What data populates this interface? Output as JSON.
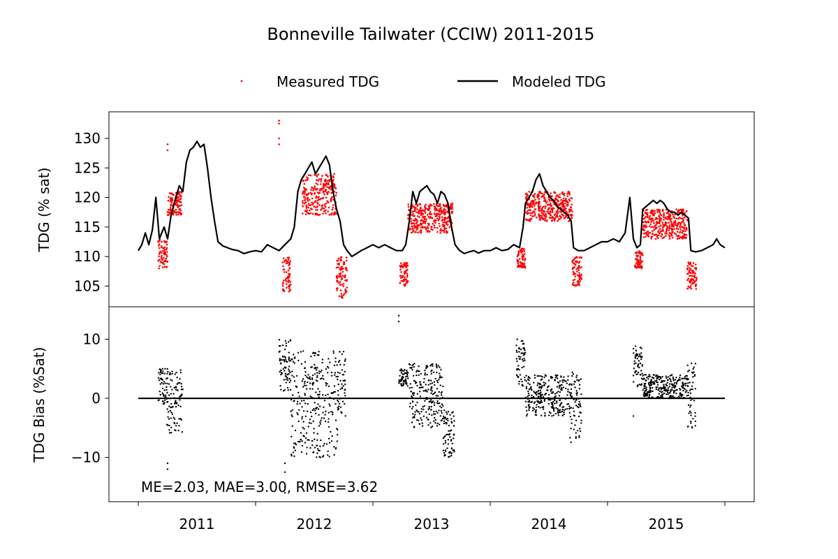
{
  "chart_data": {
    "type": "line",
    "title": "Bonneville Tailwater (CCIW) 2011-2015",
    "colors": {
      "measured": "#ff0000",
      "modeled": "#000000",
      "bias": "#000000",
      "axes": "#000000",
      "zero_line": "#000000"
    },
    "legend": {
      "placement": "top-center",
      "entries": [
        "Measured TDG",
        "Modeled TDG"
      ]
    },
    "x_axis": {
      "ticks": [
        "2011",
        "2012",
        "2013",
        "2014",
        "2015"
      ],
      "range": [
        2010.75,
        2016.25
      ]
    },
    "top_panel": {
      "ylabel": "TDG (% sat)",
      "ylim": [
        101.5,
        134.5
      ],
      "yticks": [
        "105",
        "110",
        "115",
        "120",
        "125",
        "130"
      ],
      "modeled": [
        [
          2011.0,
          111.0
        ],
        [
          2011.03,
          112.0
        ],
        [
          2011.06,
          114.0
        ],
        [
          2011.09,
          112.0
        ],
        [
          2011.12,
          114.5
        ],
        [
          2011.15,
          120.0
        ],
        [
          2011.18,
          113.0
        ],
        [
          2011.22,
          115.0
        ],
        [
          2011.25,
          113.0
        ],
        [
          2011.28,
          117.0
        ],
        [
          2011.32,
          120.0
        ],
        [
          2011.35,
          122.0
        ],
        [
          2011.38,
          121.0
        ],
        [
          2011.41,
          126.0
        ],
        [
          2011.44,
          128.0
        ],
        [
          2011.47,
          128.5
        ],
        [
          2011.5,
          129.5
        ],
        [
          2011.53,
          128.5
        ],
        [
          2011.56,
          129.0
        ],
        [
          2011.59,
          125.0
        ],
        [
          2011.62,
          120.0
        ],
        [
          2011.65,
          116.0
        ],
        [
          2011.68,
          112.5
        ],
        [
          2011.72,
          111.8
        ],
        [
          2011.76,
          111.5
        ],
        [
          2011.8,
          111.2
        ],
        [
          2011.85,
          111.0
        ],
        [
          2011.9,
          110.5
        ],
        [
          2011.95,
          110.8
        ],
        [
          2012.0,
          111.0
        ],
        [
          2012.05,
          110.8
        ],
        [
          2012.1,
          112.0
        ],
        [
          2012.15,
          111.5
        ],
        [
          2012.2,
          111.0
        ],
        [
          2012.25,
          112.0
        ],
        [
          2012.3,
          113.0
        ],
        [
          2012.33,
          115.0
        ],
        [
          2012.36,
          121.0
        ],
        [
          2012.39,
          123.0
        ],
        [
          2012.42,
          124.0
        ],
        [
          2012.45,
          125.0
        ],
        [
          2012.48,
          126.0
        ],
        [
          2012.51,
          124.0
        ],
        [
          2012.54,
          125.0
        ],
        [
          2012.57,
          126.0
        ],
        [
          2012.6,
          127.0
        ],
        [
          2012.63,
          125.5
        ],
        [
          2012.66,
          121.0
        ],
        [
          2012.69,
          118.0
        ],
        [
          2012.72,
          116.0
        ],
        [
          2012.75,
          112.0
        ],
        [
          2012.78,
          111.0
        ],
        [
          2012.82,
          110.0
        ],
        [
          2012.86,
          110.5
        ],
        [
          2012.9,
          111.0
        ],
        [
          2012.95,
          111.5
        ],
        [
          2013.0,
          112.0
        ],
        [
          2013.05,
          111.5
        ],
        [
          2013.1,
          112.0
        ],
        [
          2013.15,
          111.5
        ],
        [
          2013.2,
          111.0
        ],
        [
          2013.25,
          111.0
        ],
        [
          2013.28,
          112.0
        ],
        [
          2013.31,
          116.0
        ],
        [
          2013.34,
          121.0
        ],
        [
          2013.37,
          119.0
        ],
        [
          2013.4,
          121.0
        ],
        [
          2013.43,
          121.5
        ],
        [
          2013.46,
          122.0
        ],
        [
          2013.49,
          121.0
        ],
        [
          2013.52,
          120.5
        ],
        [
          2013.55,
          119.0
        ],
        [
          2013.58,
          121.0
        ],
        [
          2013.61,
          120.5
        ],
        [
          2013.64,
          119.0
        ],
        [
          2013.67,
          115.0
        ],
        [
          2013.7,
          112.0
        ],
        [
          2013.74,
          111.0
        ],
        [
          2013.78,
          110.5
        ],
        [
          2013.82,
          110.8
        ],
        [
          2013.86,
          111.0
        ],
        [
          2013.9,
          110.6
        ],
        [
          2013.95,
          111.0
        ],
        [
          2014.0,
          111.0
        ],
        [
          2014.05,
          111.5
        ],
        [
          2014.1,
          111.0
        ],
        [
          2014.15,
          111.2
        ],
        [
          2014.2,
          112.0
        ],
        [
          2014.25,
          111.5
        ],
        [
          2014.28,
          115.0
        ],
        [
          2014.3,
          119.0
        ],
        [
          2014.33,
          120.0
        ],
        [
          2014.36,
          121.0
        ],
        [
          2014.39,
          123.0
        ],
        [
          2014.42,
          124.0
        ],
        [
          2014.45,
          122.0
        ],
        [
          2014.48,
          121.0
        ],
        [
          2014.51,
          120.0
        ],
        [
          2014.54,
          119.5
        ],
        [
          2014.57,
          118.5
        ],
        [
          2014.6,
          118.0
        ],
        [
          2014.63,
          117.5
        ],
        [
          2014.66,
          117.0
        ],
        [
          2014.69,
          116.0
        ],
        [
          2014.71,
          111.5
        ],
        [
          2014.75,
          111.0
        ],
        [
          2014.8,
          111.0
        ],
        [
          2014.85,
          111.5
        ],
        [
          2014.9,
          112.0
        ],
        [
          2014.95,
          112.5
        ],
        [
          2015.0,
          112.5
        ],
        [
          2015.05,
          113.0
        ],
        [
          2015.1,
          112.5
        ],
        [
          2015.15,
          114.0
        ],
        [
          2015.19,
          120.0
        ],
        [
          2015.22,
          113.0
        ],
        [
          2015.25,
          111.5
        ],
        [
          2015.28,
          112.0
        ],
        [
          2015.3,
          118.0
        ],
        [
          2015.33,
          118.5
        ],
        [
          2015.36,
          119.0
        ],
        [
          2015.39,
          119.5
        ],
        [
          2015.42,
          119.0
        ],
        [
          2015.45,
          119.5
        ],
        [
          2015.48,
          119.0
        ],
        [
          2015.51,
          118.0
        ],
        [
          2015.54,
          117.5
        ],
        [
          2015.57,
          117.5
        ],
        [
          2015.6,
          117.0
        ],
        [
          2015.63,
          117.5
        ],
        [
          2015.66,
          117.0
        ],
        [
          2015.69,
          116.5
        ],
        [
          2015.71,
          111.0
        ],
        [
          2015.75,
          110.8
        ],
        [
          2015.8,
          111.0
        ],
        [
          2015.85,
          111.5
        ],
        [
          2015.9,
          112.0
        ],
        [
          2015.93,
          113.0
        ],
        [
          2015.96,
          112.0
        ],
        [
          2016.0,
          111.5
        ]
      ],
      "measured_segments": [
        {
          "x_range": [
            2011.17,
            2011.25
          ],
          "y_range": [
            108.0,
            113.0
          ]
        },
        {
          "x_range": [
            2011.25,
            2011.37
          ],
          "y_range": [
            117.0,
            121.0
          ]
        },
        {
          "x_range": [
            2012.23,
            2012.3
          ],
          "y_range": [
            104.0,
            110.0
          ]
        },
        {
          "x_range": [
            2012.4,
            2012.69
          ],
          "y_range": [
            117.0,
            124.0
          ]
        },
        {
          "x_range": [
            2012.69,
            2012.78
          ],
          "y_range": [
            103.0,
            110.0
          ]
        },
        {
          "x_range": [
            2013.23,
            2013.3
          ],
          "y_range": [
            105.0,
            109.0
          ]
        },
        {
          "x_range": [
            2013.3,
            2013.68
          ],
          "y_range": [
            114.0,
            119.0
          ]
        },
        {
          "x_range": [
            2014.23,
            2014.3
          ],
          "y_range": [
            108.0,
            111.5
          ]
        },
        {
          "x_range": [
            2014.3,
            2014.7
          ],
          "y_range": [
            116.0,
            121.0
          ]
        },
        {
          "x_range": [
            2014.7,
            2014.78
          ],
          "y_range": [
            105.0,
            110.0
          ]
        },
        {
          "x_range": [
            2015.23,
            2015.3
          ],
          "y_range": [
            108.0,
            111.0
          ]
        },
        {
          "x_range": [
            2015.3,
            2015.68
          ],
          "y_range": [
            113.0,
            118.0
          ]
        },
        {
          "x_range": [
            2015.68,
            2015.76
          ],
          "y_range": [
            104.5,
            109.0
          ]
        }
      ],
      "measured_outliers": [
        [
          2011.25,
          129.0
        ],
        [
          2011.25,
          128.0
        ],
        [
          2012.2,
          133.0
        ],
        [
          2012.2,
          132.5
        ],
        [
          2012.2,
          130.0
        ],
        [
          2012.2,
          129.0
        ]
      ]
    },
    "bottom_panel": {
      "ylabel": "TDG Bias (%Sat)",
      "ylim": [
        -17.5,
        15.5
      ],
      "yticks": [
        "−10",
        "0",
        "10"
      ],
      "zero_line": [
        [
          2011.0,
          0
        ],
        [
          2016.0,
          0
        ]
      ],
      "bias_segments": [
        {
          "x_range": [
            2011.17,
            2011.24
          ],
          "y_range": [
            -1.0,
            5.0
          ]
        },
        {
          "x_range": [
            2011.24,
            2011.38
          ],
          "y_range": [
            -6.0,
            5.0
          ]
        },
        {
          "x_range": [
            2012.2,
            2012.3
          ],
          "y_range": [
            1.0,
            10.0
          ]
        },
        {
          "x_range": [
            2012.3,
            2012.7
          ],
          "y_range": [
            -10.0,
            8.0
          ]
        },
        {
          "x_range": [
            2012.7,
            2012.77
          ],
          "y_range": [
            -3.0,
            8.0
          ]
        },
        {
          "x_range": [
            2013.22,
            2013.3
          ],
          "y_range": [
            2.0,
            5.0
          ]
        },
        {
          "x_range": [
            2013.3,
            2013.6
          ],
          "y_range": [
            -5.0,
            6.0
          ]
        },
        {
          "x_range": [
            2013.6,
            2013.7
          ],
          "y_range": [
            -10.0,
            -2.0
          ]
        },
        {
          "x_range": [
            2014.22,
            2014.3
          ],
          "y_range": [
            2.0,
            10.0
          ]
        },
        {
          "x_range": [
            2014.3,
            2014.68
          ],
          "y_range": [
            -3.0,
            4.0
          ]
        },
        {
          "x_range": [
            2014.68,
            2014.78
          ],
          "y_range": [
            -7.5,
            5.0
          ]
        },
        {
          "x_range": [
            2015.22,
            2015.3
          ],
          "y_range": [
            2.0,
            9.0
          ]
        },
        {
          "x_range": [
            2015.3,
            2015.68
          ],
          "y_range": [
            0.0,
            4.0
          ]
        },
        {
          "x_range": [
            2015.68,
            2015.75
          ],
          "y_range": [
            -5.0,
            6.0
          ]
        }
      ],
      "bias_outliers": [
        [
          2011.25,
          -11.0
        ],
        [
          2011.25,
          -12.0
        ],
        [
          2012.25,
          -11.0
        ],
        [
          2012.25,
          -12.5
        ],
        [
          2012.25,
          -15.0
        ],
        [
          2012.25,
          -16.0
        ],
        [
          2013.22,
          14.0
        ],
        [
          2013.22,
          13.0
        ],
        [
          2015.22,
          -3.0
        ]
      ],
      "stats_text": "ME=2.03, MAE=3.00, RMSE=3.62"
    }
  }
}
